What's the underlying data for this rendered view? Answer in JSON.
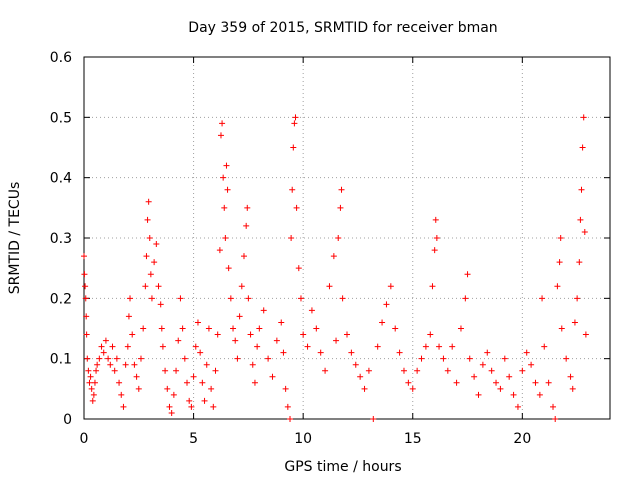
{
  "chart_data": {
    "type": "scatter",
    "title": "Day 359 of 2015, SRMTID for receiver bman",
    "xlabel": "GPS time / hours",
    "ylabel": "SRMTID / TECUs",
    "xlim": [
      0,
      24
    ],
    "ylim": [
      0,
      0.6
    ],
    "xticks": [
      0,
      5,
      10,
      15,
      20
    ],
    "xtick_labels": [
      "0",
      "5",
      "10",
      "15",
      "20"
    ],
    "yticks": [
      0,
      0.1,
      0.2,
      0.3,
      0.4,
      0.5,
      0.6
    ],
    "ytick_labels": [
      "0",
      "0.1",
      "0.2",
      "0.3",
      "0.4",
      "0.5",
      "0.6"
    ],
    "grid": true,
    "marker": "plus",
    "marker_color": "#ff0000",
    "series": [
      {
        "name": "SRMTID",
        "points": [
          [
            0.0,
            0.27
          ],
          [
            0.02,
            0.24
          ],
          [
            0.05,
            0.22
          ],
          [
            0.08,
            0.2
          ],
          [
            0.1,
            0.17
          ],
          [
            0.12,
            0.14
          ],
          [
            0.15,
            0.1
          ],
          [
            0.2,
            0.08
          ],
          [
            0.25,
            0.06
          ],
          [
            0.3,
            0.07
          ],
          [
            0.35,
            0.05
          ],
          [
            0.4,
            0.03
          ],
          [
            0.45,
            0.04
          ],
          [
            0.5,
            0.06
          ],
          [
            0.55,
            0.08
          ],
          [
            0.6,
            0.09
          ],
          [
            0.7,
            0.1
          ],
          [
            0.8,
            0.12
          ],
          [
            0.9,
            0.11
          ],
          [
            1.0,
            0.13
          ],
          [
            1.1,
            0.1
          ],
          [
            1.2,
            0.09
          ],
          [
            1.3,
            0.12
          ],
          [
            1.4,
            0.08
          ],
          [
            1.5,
            0.1
          ],
          [
            1.6,
            0.06
          ],
          [
            1.7,
            0.04
          ],
          [
            1.8,
            0.02
          ],
          [
            1.9,
            0.09
          ],
          [
            2.0,
            0.12
          ],
          [
            2.05,
            0.17
          ],
          [
            2.1,
            0.2
          ],
          [
            2.2,
            0.14
          ],
          [
            2.3,
            0.09
          ],
          [
            2.4,
            0.07
          ],
          [
            2.5,
            0.05
          ],
          [
            2.6,
            0.1
          ],
          [
            2.7,
            0.15
          ],
          [
            2.8,
            0.22
          ],
          [
            2.85,
            0.27
          ],
          [
            2.9,
            0.33
          ],
          [
            2.95,
            0.36
          ],
          [
            3.0,
            0.3
          ],
          [
            3.05,
            0.24
          ],
          [
            3.1,
            0.2
          ],
          [
            3.2,
            0.26
          ],
          [
            3.3,
            0.29
          ],
          [
            3.4,
            0.22
          ],
          [
            3.5,
            0.19
          ],
          [
            3.55,
            0.15
          ],
          [
            3.6,
            0.12
          ],
          [
            3.7,
            0.08
          ],
          [
            3.8,
            0.05
          ],
          [
            3.9,
            0.02
          ],
          [
            4.0,
            0.01
          ],
          [
            4.1,
            0.04
          ],
          [
            4.2,
            0.08
          ],
          [
            4.3,
            0.13
          ],
          [
            4.4,
            0.2
          ],
          [
            4.5,
            0.15
          ],
          [
            4.6,
            0.1
          ],
          [
            4.7,
            0.06
          ],
          [
            4.8,
            0.03
          ],
          [
            4.9,
            0.02
          ],
          [
            5.0,
            0.07
          ],
          [
            5.1,
            0.12
          ],
          [
            5.2,
            0.16
          ],
          [
            5.3,
            0.11
          ],
          [
            5.4,
            0.06
          ],
          [
            5.5,
            0.03
          ],
          [
            5.6,
            0.09
          ],
          [
            5.7,
            0.15
          ],
          [
            5.8,
            0.05
          ],
          [
            5.9,
            0.02
          ],
          [
            6.0,
            0.08
          ],
          [
            6.1,
            0.14
          ],
          [
            6.2,
            0.28
          ],
          [
            6.25,
            0.47
          ],
          [
            6.3,
            0.49
          ],
          [
            6.35,
            0.4
          ],
          [
            6.4,
            0.35
          ],
          [
            6.45,
            0.3
          ],
          [
            6.5,
            0.42
          ],
          [
            6.55,
            0.38
          ],
          [
            6.6,
            0.25
          ],
          [
            6.7,
            0.2
          ],
          [
            6.8,
            0.15
          ],
          [
            6.9,
            0.13
          ],
          [
            7.0,
            0.1
          ],
          [
            7.1,
            0.17
          ],
          [
            7.2,
            0.22
          ],
          [
            7.3,
            0.27
          ],
          [
            7.4,
            0.32
          ],
          [
            7.45,
            0.35
          ],
          [
            7.5,
            0.2
          ],
          [
            7.6,
            0.14
          ],
          [
            7.7,
            0.09
          ],
          [
            7.8,
            0.06
          ],
          [
            7.9,
            0.12
          ],
          [
            8.0,
            0.15
          ],
          [
            8.2,
            0.18
          ],
          [
            8.4,
            0.1
          ],
          [
            8.6,
            0.07
          ],
          [
            8.8,
            0.13
          ],
          [
            9.0,
            0.16
          ],
          [
            9.1,
            0.11
          ],
          [
            9.2,
            0.05
          ],
          [
            9.3,
            0.02
          ],
          [
            9.4,
            0.0
          ],
          [
            9.45,
            0.3
          ],
          [
            9.5,
            0.38
          ],
          [
            9.55,
            0.45
          ],
          [
            9.6,
            0.49
          ],
          [
            9.65,
            0.5
          ],
          [
            9.7,
            0.35
          ],
          [
            9.8,
            0.25
          ],
          [
            9.9,
            0.2
          ],
          [
            10.0,
            0.14
          ],
          [
            10.2,
            0.12
          ],
          [
            10.4,
            0.18
          ],
          [
            10.6,
            0.15
          ],
          [
            10.8,
            0.11
          ],
          [
            11.0,
            0.08
          ],
          [
            11.2,
            0.22
          ],
          [
            11.4,
            0.27
          ],
          [
            11.5,
            0.13
          ],
          [
            11.6,
            0.3
          ],
          [
            11.7,
            0.35
          ],
          [
            11.75,
            0.38
          ],
          [
            11.8,
            0.2
          ],
          [
            12.0,
            0.14
          ],
          [
            12.2,
            0.11
          ],
          [
            12.4,
            0.09
          ],
          [
            12.6,
            0.07
          ],
          [
            12.8,
            0.05
          ],
          [
            13.0,
            0.08
          ],
          [
            13.2,
            0.0
          ],
          [
            13.4,
            0.12
          ],
          [
            13.6,
            0.16
          ],
          [
            13.8,
            0.19
          ],
          [
            14.0,
            0.22
          ],
          [
            14.2,
            0.15
          ],
          [
            14.4,
            0.11
          ],
          [
            14.6,
            0.08
          ],
          [
            14.8,
            0.06
          ],
          [
            15.0,
            0.05
          ],
          [
            15.2,
            0.08
          ],
          [
            15.4,
            0.1
          ],
          [
            15.6,
            0.12
          ],
          [
            15.8,
            0.14
          ],
          [
            15.9,
            0.22
          ],
          [
            16.0,
            0.28
          ],
          [
            16.05,
            0.33
          ],
          [
            16.1,
            0.3
          ],
          [
            16.2,
            0.12
          ],
          [
            16.4,
            0.1
          ],
          [
            16.6,
            0.08
          ],
          [
            16.8,
            0.12
          ],
          [
            17.0,
            0.06
          ],
          [
            17.2,
            0.15
          ],
          [
            17.4,
            0.2
          ],
          [
            17.5,
            0.24
          ],
          [
            17.6,
            0.1
          ],
          [
            17.8,
            0.07
          ],
          [
            18.0,
            0.04
          ],
          [
            18.2,
            0.09
          ],
          [
            18.4,
            0.11
          ],
          [
            18.6,
            0.08
          ],
          [
            18.8,
            0.06
          ],
          [
            19.0,
            0.05
          ],
          [
            19.2,
            0.1
          ],
          [
            19.4,
            0.07
          ],
          [
            19.6,
            0.04
          ],
          [
            19.8,
            0.02
          ],
          [
            20.0,
            0.08
          ],
          [
            20.2,
            0.11
          ],
          [
            20.4,
            0.09
          ],
          [
            20.6,
            0.06
          ],
          [
            20.8,
            0.04
          ],
          [
            20.9,
            0.2
          ],
          [
            21.0,
            0.12
          ],
          [
            21.2,
            0.06
          ],
          [
            21.4,
            0.02
          ],
          [
            21.5,
            0.0
          ],
          [
            21.6,
            0.22
          ],
          [
            21.7,
            0.26
          ],
          [
            21.75,
            0.3
          ],
          [
            21.8,
            0.15
          ],
          [
            22.0,
            0.1
          ],
          [
            22.2,
            0.07
          ],
          [
            22.3,
            0.05
          ],
          [
            22.4,
            0.16
          ],
          [
            22.5,
            0.2
          ],
          [
            22.6,
            0.26
          ],
          [
            22.65,
            0.33
          ],
          [
            22.7,
            0.38
          ],
          [
            22.75,
            0.45
          ],
          [
            22.8,
            0.5
          ],
          [
            22.85,
            0.31
          ],
          [
            22.9,
            0.14
          ]
        ]
      }
    ]
  }
}
